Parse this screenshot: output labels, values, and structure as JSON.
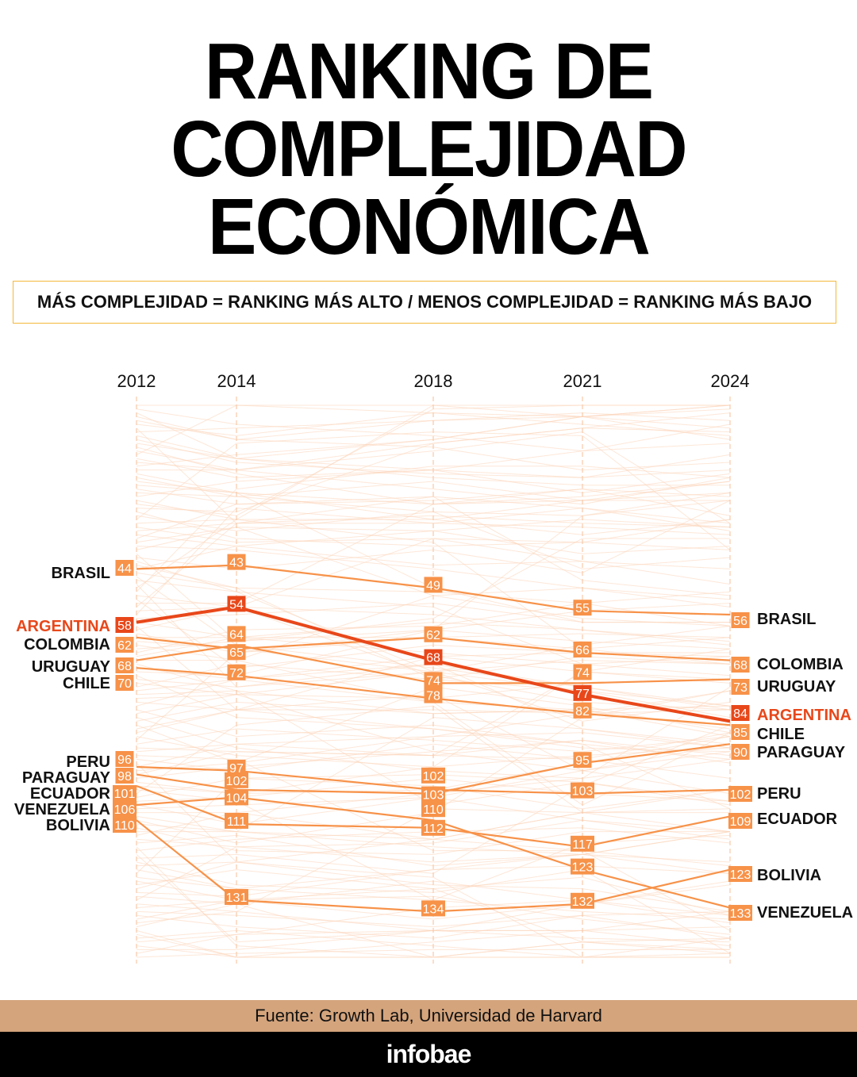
{
  "title_lines": [
    "RANKING DE",
    "COMPLEJIDAD",
    "ECONÓMICA"
  ],
  "subtitle": "MÁS COMPLEJIDAD = RANKING MÁS ALTO / MENOS COMPLEJIDAD = RANKING MÁS BAJO",
  "source": "Fuente: Growth Lab, Universidad de Harvard",
  "logo": "infobae",
  "colors": {
    "highlight": "#E8471A",
    "series": "#F79249",
    "background_lines": "#FBD3B8",
    "subtitle_border": "#F3B83B",
    "footer": "#D4A47C"
  },
  "chart_data": {
    "type": "bump",
    "x": [
      "2012",
      "2014",
      "2018",
      "2021",
      "2024"
    ],
    "y_axis": "rank (inverted, 1 at top)",
    "grid": "vertical dashed lines per year",
    "highlight": "ARGENTINA",
    "series": [
      {
        "name": "BRASIL",
        "values": [
          44,
          43,
          49,
          55,
          56
        ]
      },
      {
        "name": "ARGENTINA",
        "values": [
          58,
          54,
          68,
          77,
          84
        ]
      },
      {
        "name": "COLOMBIA",
        "values": [
          62,
          65,
          62,
          66,
          68
        ]
      },
      {
        "name": "URUGUAY",
        "values": [
          68,
          64,
          74,
          74,
          73
        ]
      },
      {
        "name": "CHILE",
        "values": [
          70,
          72,
          78,
          82,
          85
        ]
      },
      {
        "name": "PERU",
        "values": [
          96,
          97,
          102,
          103,
          102
        ]
      },
      {
        "name": "PARAGUAY",
        "values": [
          98,
          102,
          103,
          95,
          90
        ]
      },
      {
        "name": "ECUADOR",
        "values": [
          101,
          111,
          112,
          117,
          109
        ]
      },
      {
        "name": "VENEZUELA",
        "values": [
          106,
          104,
          110,
          123,
          133
        ]
      },
      {
        "name": "BOLIVIA",
        "values": [
          110,
          131,
          134,
          132,
          123
        ]
      }
    ]
  }
}
